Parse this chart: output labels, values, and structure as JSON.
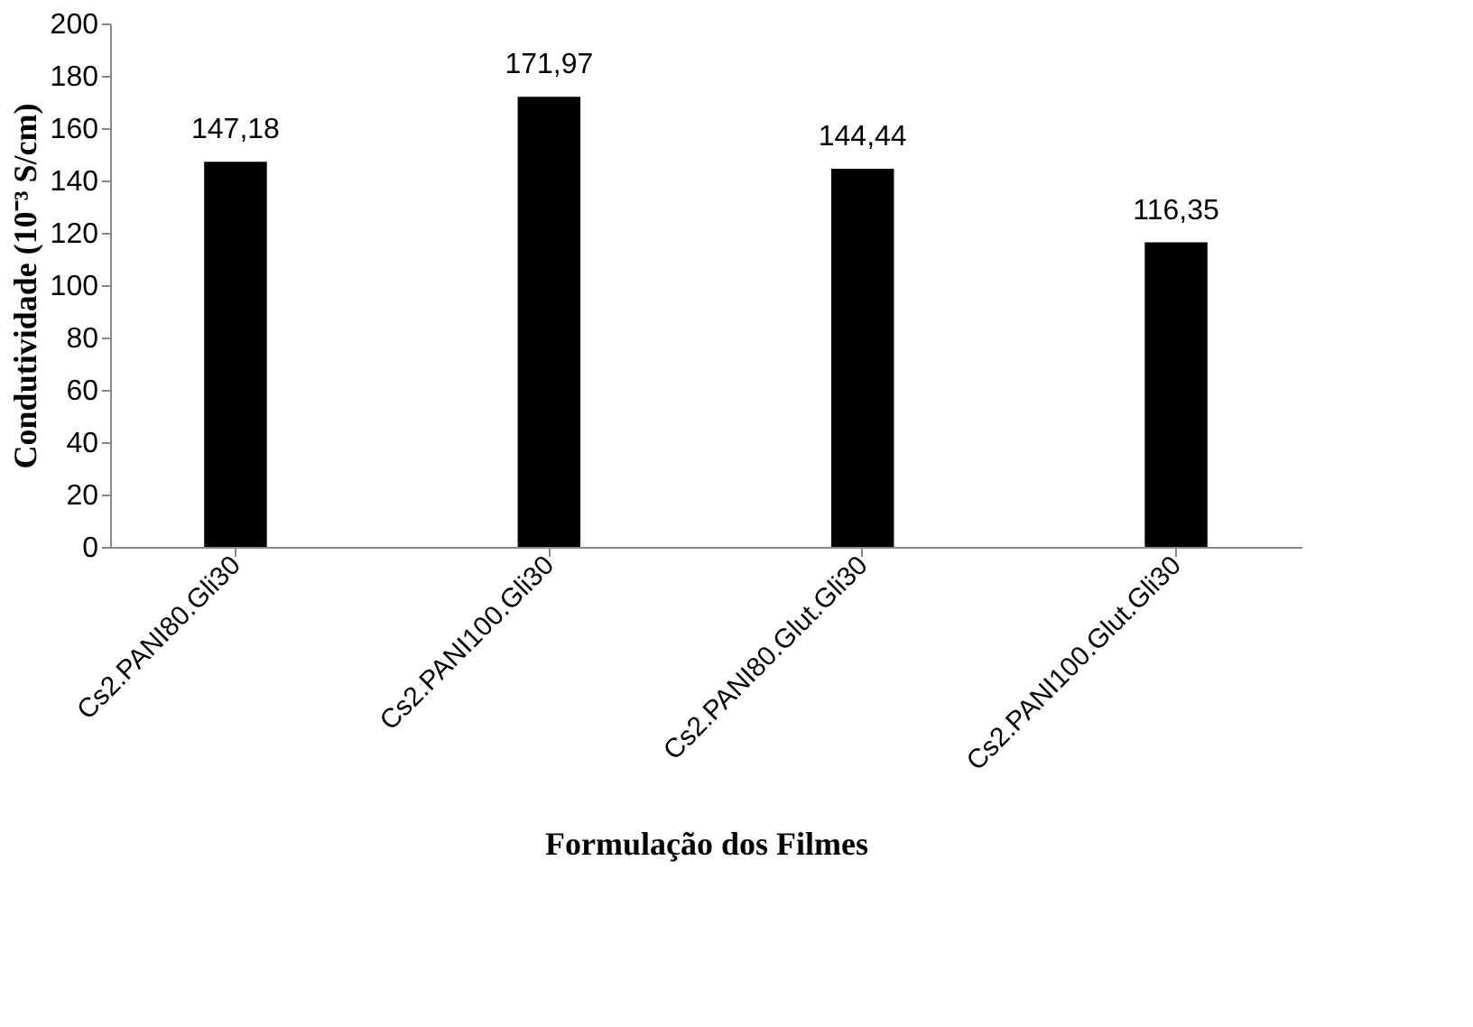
{
  "chart_data": {
    "type": "bar",
    "xlabel": "Formulação dos Filmes",
    "ylabel": "Condutividade (10⁻³ S/cm)",
    "categories": [
      "Cs2.PANI80.Gli30",
      "Cs2.PANI100.Gli30",
      "Cs2.PANI80.Glut.Gli30",
      "Cs2.PANI100.Glut.Gli30"
    ],
    "values": [
      147.18,
      171.97,
      144.44,
      116.35
    ],
    "value_labels": [
      "147,18",
      "171,97",
      "144,44",
      "116,35"
    ],
    "color": "#000000",
    "ylim": [
      0,
      200
    ],
    "yticks": [
      0,
      20,
      40,
      60,
      80,
      100,
      120,
      140,
      160,
      180,
      200
    ],
    "grid": false
  }
}
